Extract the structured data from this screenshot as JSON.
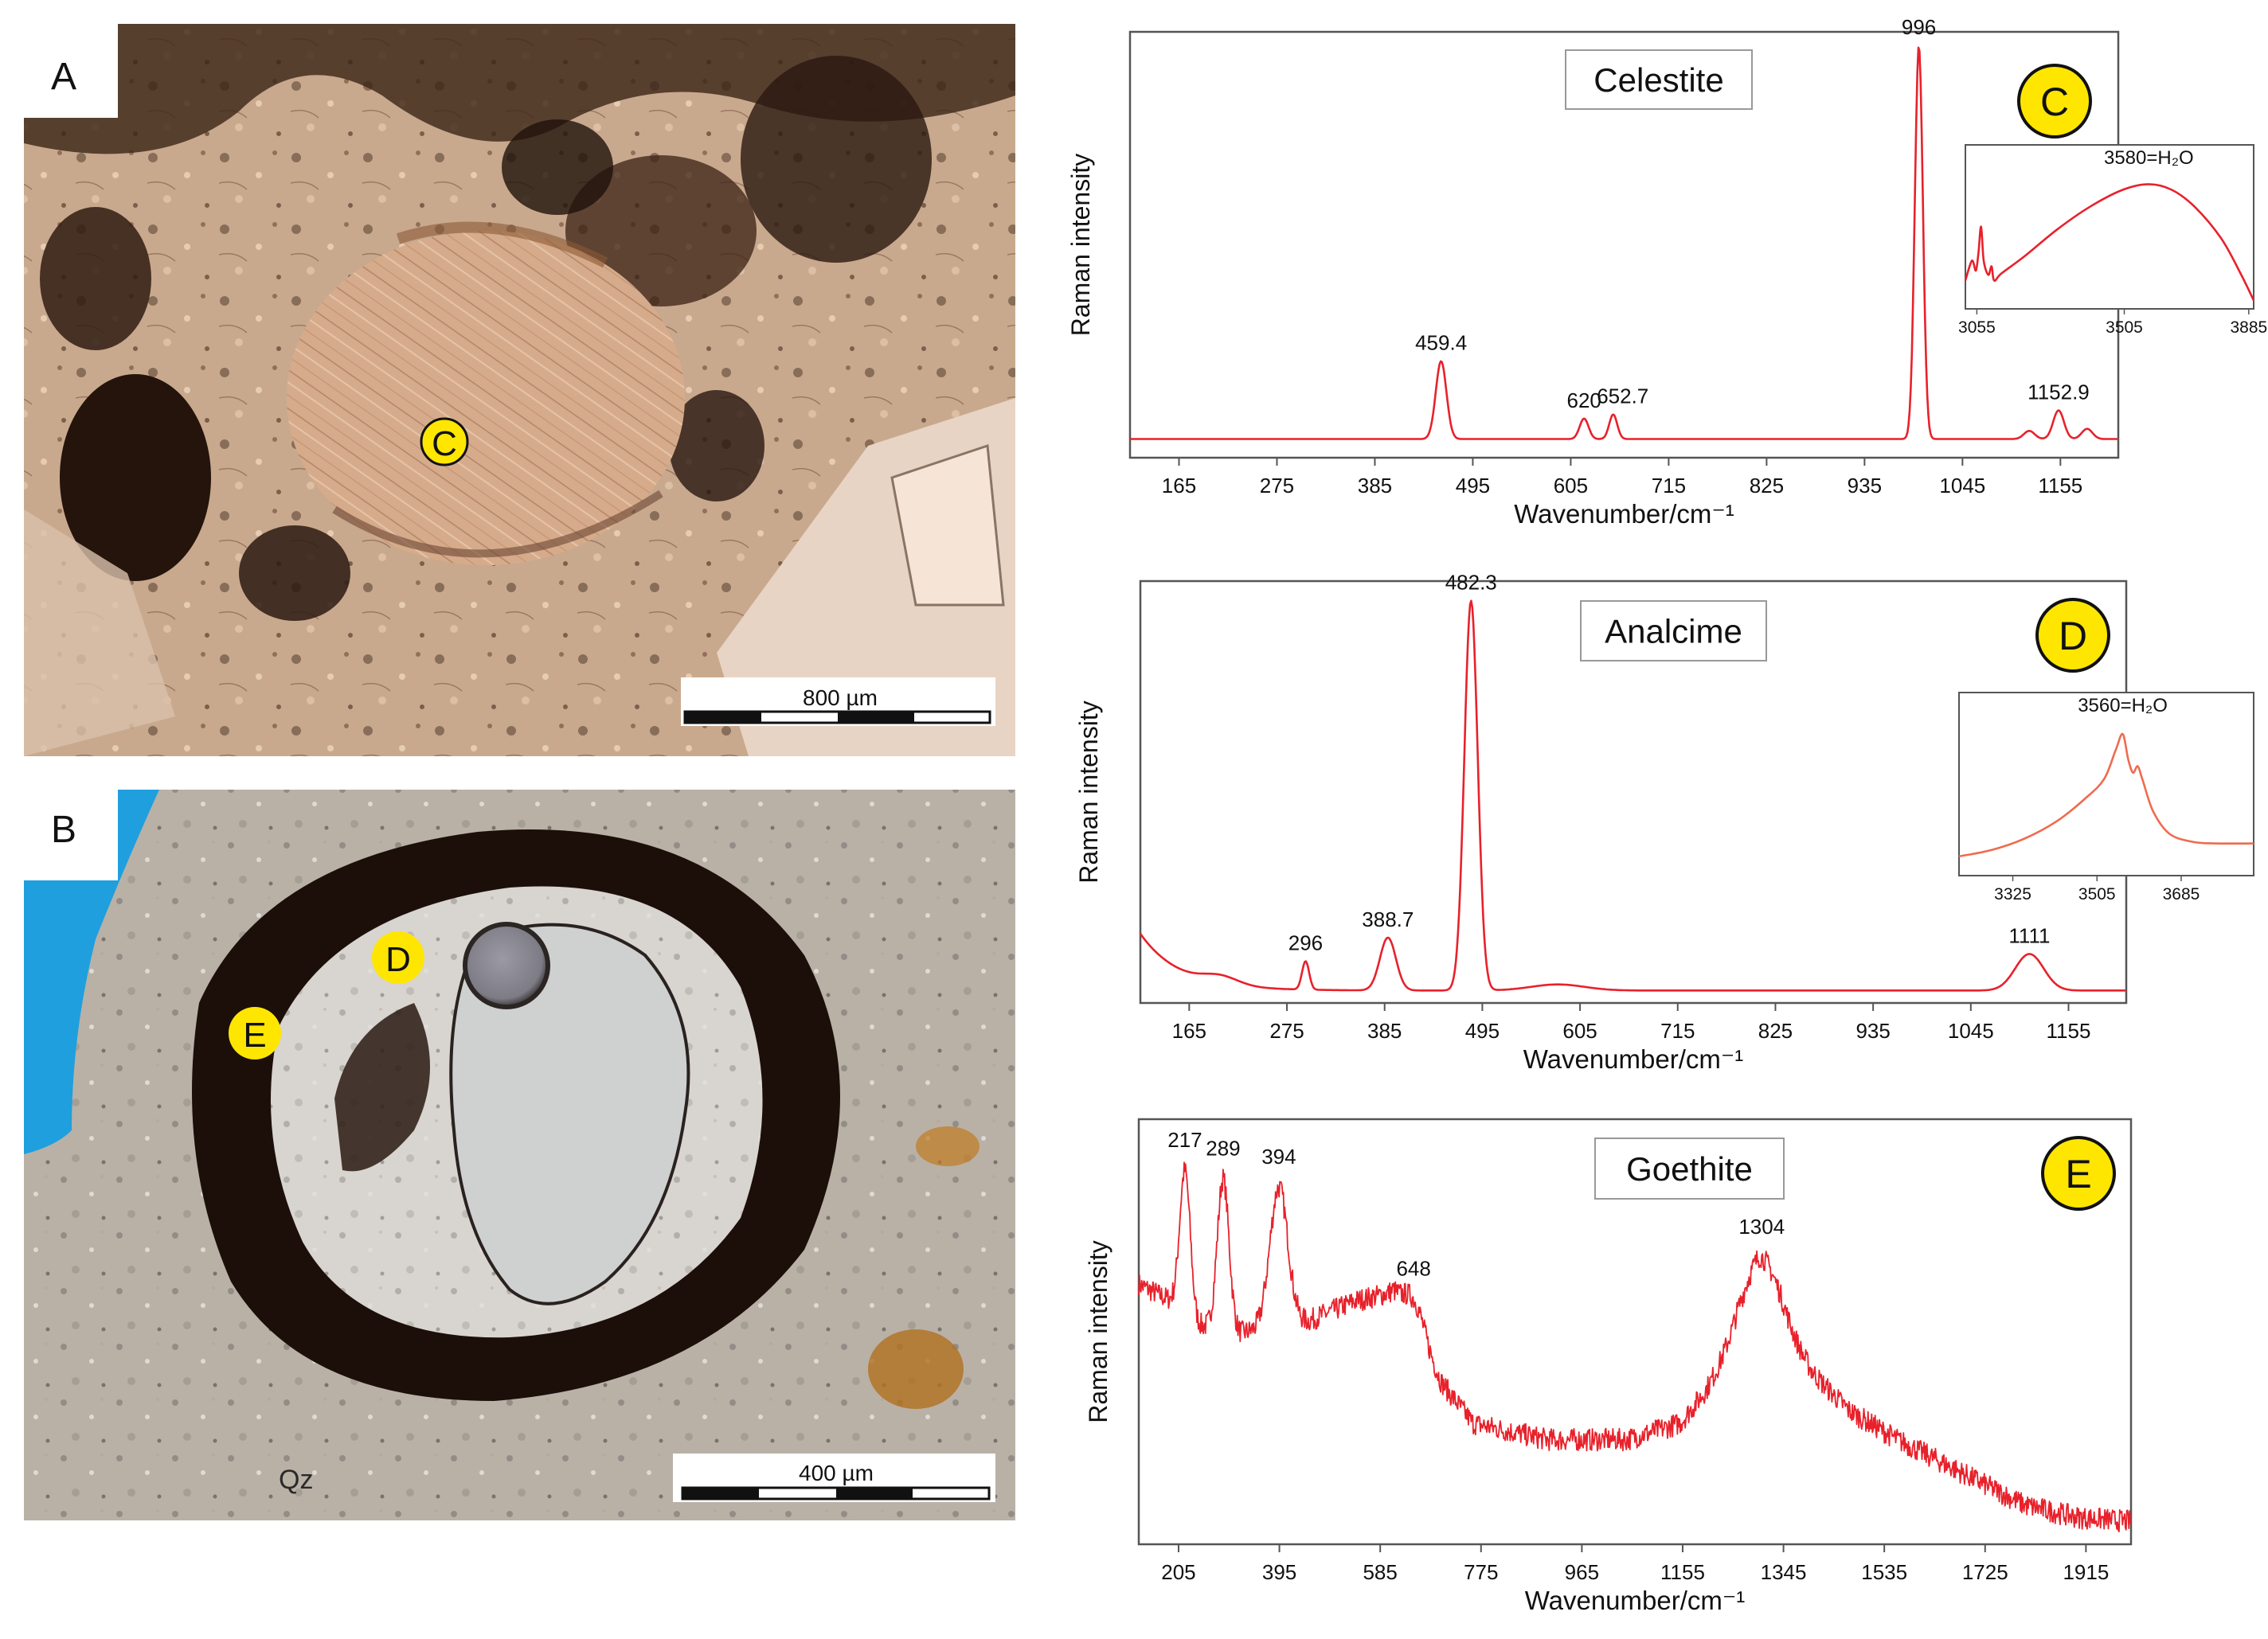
{
  "panels": {
    "a": {
      "label": "A",
      "spot": "C",
      "scale_bar": "800 µm"
    },
    "b": {
      "label": "B",
      "spots": [
        "D",
        "E"
      ],
      "scale_bar": "400 µm",
      "mineral_label": "Qz"
    }
  },
  "colors": {
    "spectrum": "#e8212b",
    "inset_d": "#ef6b4e",
    "badge_fill": "#ffe600",
    "axis": "#555555",
    "pore_blue": "#1f9fde"
  },
  "chart_data": [
    {
      "type": "line",
      "title": "Celestite",
      "badge": "C",
      "xlabel": "Wavenumber/cm⁻¹",
      "ylabel": "Raman intensity",
      "xlim": [
        110,
        1220
      ],
      "ylim": [
        0,
        100
      ],
      "x_ticks": [
        165,
        275,
        385,
        495,
        605,
        715,
        825,
        935,
        1045,
        1155
      ],
      "baseline": 3,
      "peaks": [
        {
          "x": 459.4,
          "y": 19,
          "w": 6,
          "label": "459.4"
        },
        {
          "x": 620,
          "y": 5,
          "w": 5,
          "label": "620"
        },
        {
          "x": 652.7,
          "y": 6,
          "w": 4.5,
          "label": "652.7"
        },
        {
          "x": 996,
          "y": 96,
          "w": 4.5,
          "label": "996"
        },
        {
          "x": 1152.9,
          "y": 7,
          "w": 6,
          "label": "1152.9"
        },
        {
          "x": 1120,
          "y": 2,
          "w": 6,
          "label": ""
        },
        {
          "x": 1185,
          "y": 2.5,
          "w": 6,
          "label": ""
        }
      ],
      "inset": {
        "label": "3580=H₂O",
        "x_ticks": [
          3055,
          3505,
          3885
        ],
        "xlim": [
          3020,
          3900
        ],
        "points": [
          [
            3020,
            20
          ],
          [
            3040,
            34
          ],
          [
            3052,
            27
          ],
          [
            3060,
            40
          ],
          [
            3068,
            58
          ],
          [
            3076,
            34
          ],
          [
            3090,
            24
          ],
          [
            3100,
            30
          ],
          [
            3108,
            20
          ],
          [
            3130,
            25
          ],
          [
            3200,
            37
          ],
          [
            3300,
            56
          ],
          [
            3400,
            72
          ],
          [
            3500,
            84
          ],
          [
            3580,
            88
          ],
          [
            3650,
            84
          ],
          [
            3720,
            72
          ],
          [
            3800,
            50
          ],
          [
            3860,
            25
          ],
          [
            3900,
            6
          ]
        ]
      }
    },
    {
      "type": "line",
      "title": "Analcime",
      "badge": "D",
      "xlabel": "Wavenumber/cm⁻¹",
      "ylabel": "Raman intensity",
      "xlim": [
        110,
        1220
      ],
      "ylim": [
        0,
        100
      ],
      "x_ticks": [
        165,
        275,
        385,
        495,
        605,
        715,
        825,
        935,
        1045,
        1155
      ],
      "baseline": 1.5,
      "left_tail": {
        "start": 14,
        "decay": 45
      },
      "peaks": [
        {
          "x": 200,
          "y": 2,
          "w": 20,
          "label": ""
        },
        {
          "x": 296,
          "y": 7,
          "w": 4,
          "label": "296"
        },
        {
          "x": 388.7,
          "y": 13,
          "w": 9,
          "label": "388.7"
        },
        {
          "x": 482.3,
          "y": 96,
          "w": 7.5,
          "label": "482.3"
        },
        {
          "x": 580,
          "y": 1.5,
          "w": 30,
          "label": ""
        },
        {
          "x": 1111,
          "y": 9,
          "w": 16,
          "label": "1111"
        }
      ],
      "inset": {
        "label": "3560=H₂O",
        "x_ticks": [
          3325,
          3505,
          3685
        ],
        "xlim": [
          3210,
          3840
        ],
        "points": [
          [
            3210,
            12
          ],
          [
            3280,
            16
          ],
          [
            3350,
            23
          ],
          [
            3420,
            34
          ],
          [
            3480,
            48
          ],
          [
            3520,
            60
          ],
          [
            3545,
            78
          ],
          [
            3560,
            88
          ],
          [
            3572,
            72
          ],
          [
            3582,
            64
          ],
          [
            3592,
            68
          ],
          [
            3602,
            60
          ],
          [
            3625,
            40
          ],
          [
            3660,
            26
          ],
          [
            3710,
            21
          ],
          [
            3760,
            20
          ],
          [
            3840,
            20
          ]
        ]
      }
    },
    {
      "type": "line",
      "title": "Goethite",
      "badge": "E",
      "xlabel": "Wavenumber/cm⁻¹",
      "ylabel": "Raman intensity",
      "xlim": [
        130,
        2000
      ],
      "ylim": [
        0,
        100
      ],
      "x_ticks": [
        205,
        395,
        585,
        775,
        965,
        1155,
        1345,
        1535,
        1725,
        1915
      ],
      "noisy": true,
      "baseline_points": [
        [
          130,
          62
        ],
        [
          190,
          58
        ],
        [
          240,
          52
        ],
        [
          320,
          50
        ],
        [
          450,
          53
        ],
        [
          540,
          58
        ],
        [
          610,
          60
        ],
        [
          660,
          50
        ],
        [
          700,
          38
        ],
        [
          760,
          28
        ],
        [
          900,
          24
        ],
        [
          1050,
          24
        ],
        [
          1150,
          28
        ],
        [
          1200,
          36
        ],
        [
          1260,
          48
        ],
        [
          1300,
          53
        ],
        [
          1340,
          49
        ],
        [
          1400,
          40
        ],
        [
          1470,
          31
        ],
        [
          1560,
          24
        ],
        [
          1680,
          16
        ],
        [
          1800,
          8
        ],
        [
          1900,
          5
        ],
        [
          2000,
          4
        ]
      ],
      "peaks": [
        {
          "x": 217,
          "y": 35,
          "w": 10,
          "label": "217"
        },
        {
          "x": 289,
          "y": 37,
          "w": 11,
          "label": "289"
        },
        {
          "x": 394,
          "y": 34,
          "w": 17,
          "label": "394"
        },
        {
          "x": 648,
          "y": 6,
          "w": 18,
          "label": "648"
        },
        {
          "x": 1304,
          "y": 16,
          "w": 38,
          "label": "1304"
        }
      ]
    }
  ]
}
